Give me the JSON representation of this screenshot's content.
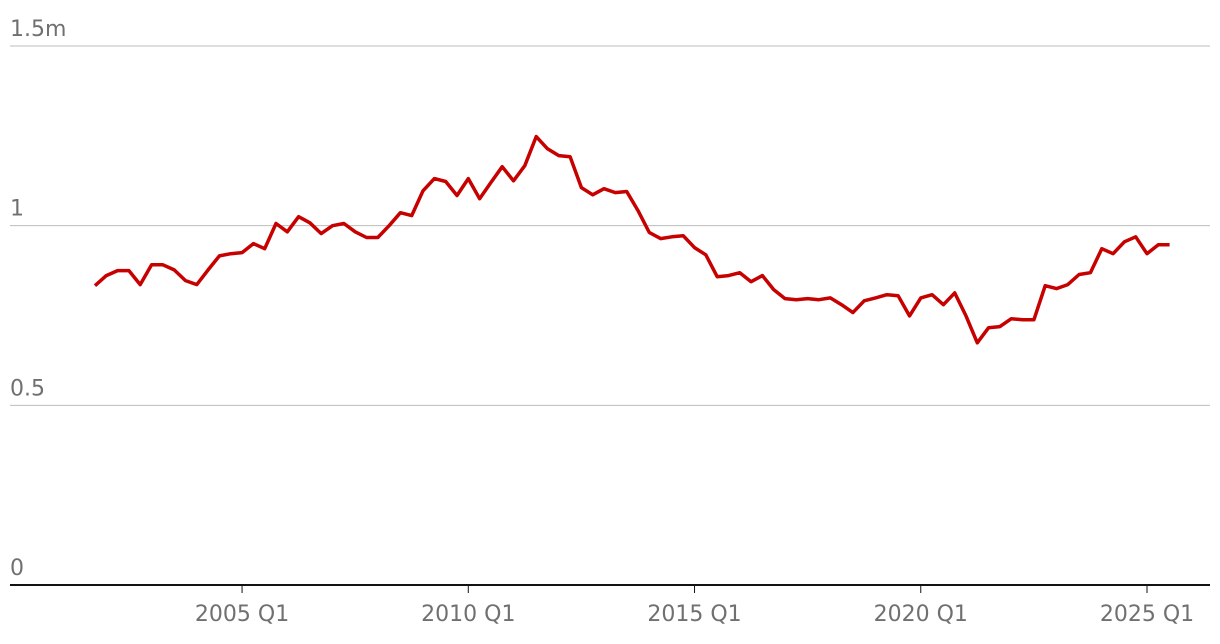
{
  "chart_data": {
    "type": "line",
    "categories": [
      null,
      null,
      null,
      null,
      null,
      null,
      null,
      null,
      null,
      null,
      null,
      null,
      null,
      "2005 Q1",
      null,
      null,
      null,
      null,
      null,
      null,
      null,
      null,
      null,
      null,
      null,
      null,
      null,
      null,
      null,
      null,
      null,
      null,
      null,
      "2010 Q1",
      null,
      null,
      null,
      null,
      null,
      null,
      null,
      null,
      null,
      null,
      null,
      null,
      null,
      null,
      null,
      null,
      null,
      null,
      null,
      "2015 Q1",
      null,
      null,
      null,
      null,
      null,
      null,
      null,
      null,
      null,
      null,
      null,
      null,
      null,
      null,
      null,
      null,
      null,
      null,
      null,
      "2020 Q1",
      null,
      null,
      null,
      null,
      null,
      null,
      null,
      null,
      null,
      null,
      null,
      null,
      null,
      null,
      null,
      null,
      null,
      null,
      null,
      "2025 Q1",
      null,
      null
    ],
    "values": [
      0.833,
      0.861,
      0.875,
      0.875,
      0.836,
      0.891,
      0.891,
      0.877,
      0.847,
      0.836,
      0.877,
      0.916,
      0.922,
      0.925,
      0.95,
      0.936,
      1.006,
      0.983,
      1.025,
      1.008,
      0.978,
      1.0,
      1.006,
      0.983,
      0.967,
      0.967,
      1.0,
      1.036,
      1.028,
      1.097,
      1.131,
      1.123,
      1.084,
      1.131,
      1.075,
      1.12,
      1.164,
      1.125,
      1.167,
      1.248,
      1.214,
      1.195,
      1.192,
      1.106,
      1.086,
      1.103,
      1.092,
      1.095,
      1.042,
      0.981,
      0.964,
      0.969,
      0.972,
      0.939,
      0.919,
      0.858,
      0.861,
      0.869,
      0.844,
      0.861,
      0.822,
      0.797,
      0.794,
      0.797,
      0.794,
      0.799,
      0.78,
      0.758,
      0.791,
      0.799,
      0.808,
      0.805,
      0.749,
      0.799,
      0.808,
      0.78,
      0.813,
      0.749,
      0.674,
      0.716,
      0.719,
      0.741,
      0.738,
      0.738,
      0.833,
      0.825,
      0.836,
      0.864,
      0.869,
      0.936,
      0.922,
      0.955,
      0.969,
      0.922,
      0.947,
      0.947
    ],
    "color": "#c70000",
    "ylim": [
      0,
      1.5
    ],
    "yticks": [
      0,
      0.5,
      1,
      {
        "value": 1.5,
        "label": "1.5m"
      }
    ],
    "grid": true
  }
}
